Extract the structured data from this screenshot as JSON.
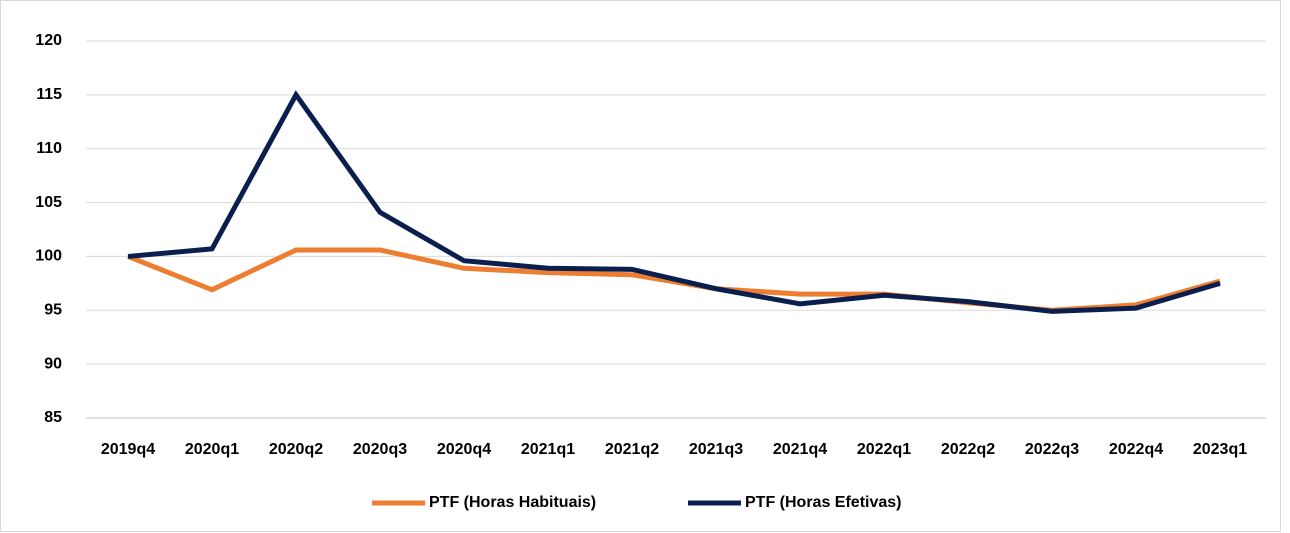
{
  "chart_data": {
    "type": "line",
    "categories": [
      "2019q4",
      "2020q1",
      "2020q2",
      "2020q3",
      "2020q4",
      "2021q1",
      "2021q2",
      "2021q3",
      "2021q4",
      "2022q1",
      "2022q2",
      "2022q3",
      "2022q4",
      "2023q1"
    ],
    "series": [
      {
        "name": "PTF (Horas Habituais)",
        "color": "#ed7d31",
        "values": [
          100,
          96.9,
          100.6,
          100.6,
          98.9,
          98.5,
          98.3,
          97.0,
          96.5,
          96.5,
          95.7,
          95.0,
          95.5,
          97.7
        ]
      },
      {
        "name": "PTF (Horas Efetivas)",
        "color": "#0b1f4f",
        "values": [
          100,
          100.7,
          115,
          104.1,
          99.6,
          98.9,
          98.8,
          97.0,
          95.6,
          96.4,
          95.8,
          94.9,
          95.2,
          97.5
        ]
      }
    ],
    "ylim": [
      85,
      120
    ],
    "yticks": [
      85,
      90,
      95,
      100,
      105,
      110,
      115,
      120
    ],
    "grid": true,
    "legend": "bottom"
  }
}
